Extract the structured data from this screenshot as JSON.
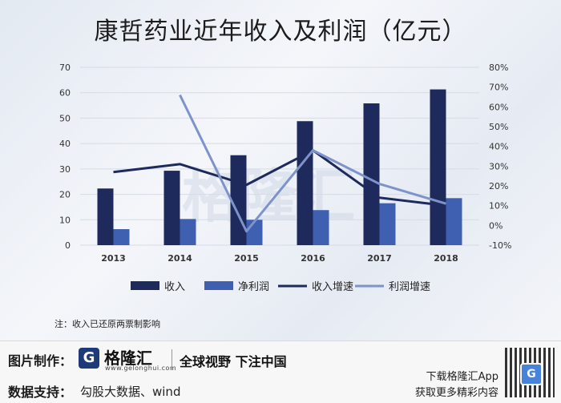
{
  "title": "康哲药业近年收入及利润（亿元）",
  "note": "注：收入已还原两票制影响",
  "watermark": "格隆汇",
  "footer": {
    "made_by_label": "图片制作：",
    "brand_logo_letter": "G",
    "brand_name": "格隆汇",
    "brand_url": "www.gelonghui.com",
    "slogan": "全球视野 下注中国",
    "data_support_label": "数据支持：",
    "data_source": "勾股大数据、wind",
    "promo_line1": "下载格隆汇App",
    "promo_line2": "获取更多精彩内容",
    "qr_letter": "G"
  },
  "colors": {
    "revenue": "#1f2a5c",
    "net_profit": "#3f5fb0",
    "revenue_growth": "#1f2a5c",
    "profit_growth": "#7e93c9"
  },
  "chart_data": {
    "type": "bar",
    "categories": [
      "2013",
      "2014",
      "2015",
      "2016",
      "2017",
      "2018"
    ],
    "series": [
      {
        "name": "收入",
        "type": "bar",
        "axis": "left",
        "values": [
          22.3,
          29.3,
          35.4,
          48.8,
          55.8,
          61.3
        ]
      },
      {
        "name": "净利润",
        "type": "bar",
        "axis": "left",
        "values": [
          6.3,
          10.3,
          10.0,
          13.8,
          16.5,
          18.5
        ]
      },
      {
        "name": "收入增速",
        "type": "line",
        "axis": "right",
        "values": [
          27.0,
          31.0,
          20.5,
          38.0,
          14.0,
          10.0
        ]
      },
      {
        "name": "利润增速",
        "type": "line",
        "axis": "right",
        "values": [
          null,
          66.0,
          -3.0,
          38.0,
          21.0,
          11.0
        ]
      }
    ],
    "ylim_left": [
      0,
      70
    ],
    "yticks_left": [
      "0",
      "10",
      "20",
      "30",
      "40",
      "50",
      "60",
      "70"
    ],
    "ylim_right": [
      -10,
      80
    ],
    "yticks_right": [
      "-10%",
      "0%",
      "10%",
      "20%",
      "30%",
      "40%",
      "50%",
      "60%",
      "70%",
      "80%"
    ],
    "legend": [
      "收入",
      "净利润",
      "收入增速",
      "利润增速"
    ],
    "legend_position": "bottom"
  }
}
